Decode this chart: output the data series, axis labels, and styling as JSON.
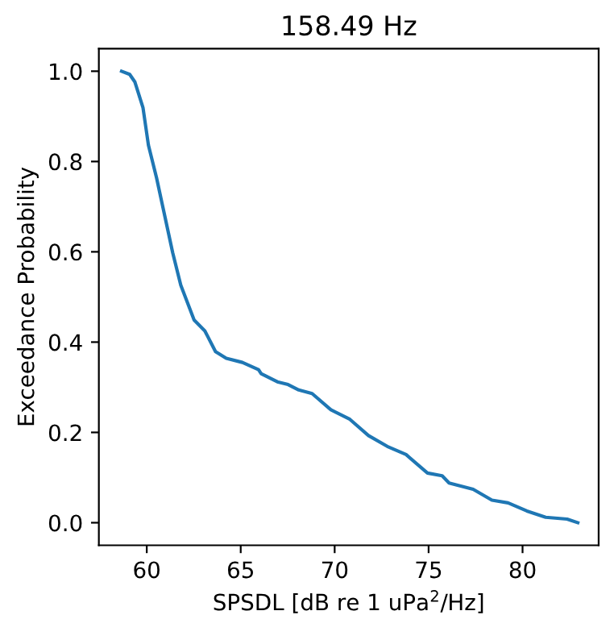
{
  "chart_data": {
    "type": "line",
    "title": "158.49 Hz",
    "xlabel": "SPSDL [dB re 1 uPa$^{2}$/Hz]",
    "ylabel": "Exceedance Probability",
    "series": [
      {
        "color": "#1f77b4",
        "x": [
          58.66,
          59.09,
          59.37,
          59.8,
          60.09,
          60.52,
          60.95,
          61.38,
          61.81,
          62.52,
          63.09,
          63.66,
          64.23,
          65.09,
          65.95,
          66.09,
          66.95,
          67.52,
          68.09,
          68.8,
          69.8,
          70.81,
          71.8,
          72.8,
          73.8,
          74.94,
          75.72,
          76.09,
          77.37,
          78.37,
          79.23,
          80.23,
          81.23,
          82.37,
          82.94
        ],
        "values": [
          1.0,
          0.993,
          0.976,
          0.919,
          0.836,
          0.764,
          0.681,
          0.598,
          0.526,
          0.449,
          0.425,
          0.379,
          0.364,
          0.355,
          0.339,
          0.33,
          0.312,
          0.306,
          0.294,
          0.286,
          0.25,
          0.229,
          0.193,
          0.169,
          0.151,
          0.11,
          0.104,
          0.088,
          0.074,
          0.05,
          0.044,
          0.026,
          0.012,
          0.008,
          0.0
        ]
      }
    ],
    "xlim": [
      57.45,
      84.05
    ],
    "ylim": [
      -0.05,
      1.05
    ],
    "xticks": [
      60,
      65,
      70,
      75,
      80
    ],
    "yticks": [
      {
        "value": 0,
        "label": "0.0"
      },
      {
        "value": 0.2,
        "label": "0.2"
      },
      {
        "value": 0.4,
        "label": "0.4"
      },
      {
        "value": 0.6,
        "label": "0.6"
      },
      {
        "value": 0.8,
        "label": "0.8"
      },
      {
        "value": 1.0,
        "label": "1.0"
      }
    ],
    "grid": false,
    "marker": "none",
    "line_style": "solid"
  }
}
